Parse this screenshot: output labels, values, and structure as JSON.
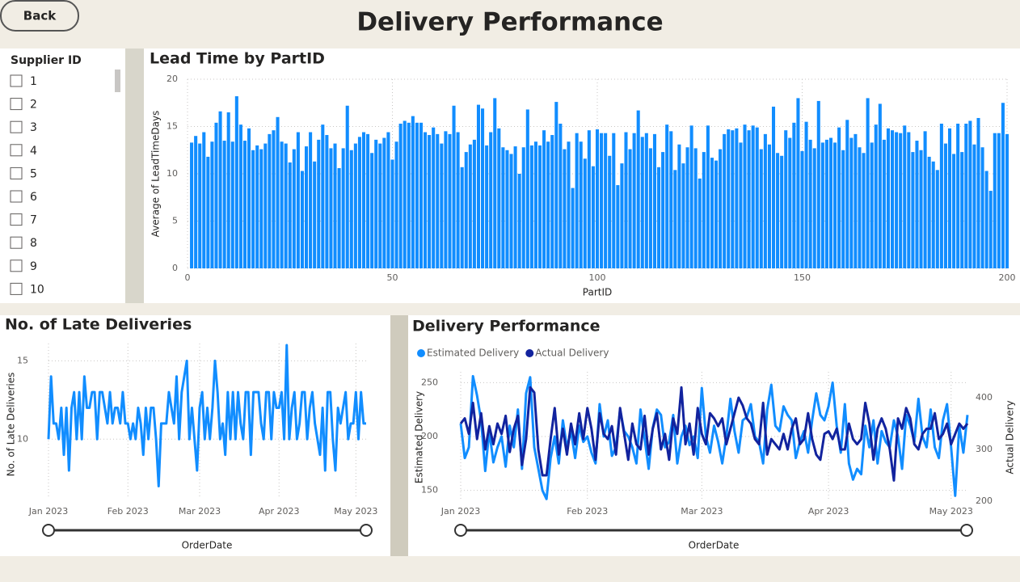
{
  "back_button": "Back",
  "title": "Delivery Performance",
  "slicer": {
    "title": "Supplier ID",
    "items": [
      "1",
      "2",
      "3",
      "4",
      "5",
      "6",
      "7",
      "8",
      "9",
      "10"
    ]
  },
  "chart_data": [
    {
      "type": "bar",
      "title": "Lead Time by PartID",
      "x_label": "PartID",
      "y_label": "Average of LeadTimeDays",
      "color": "#118dff",
      "grid": true,
      "xlim": [
        0,
        200
      ],
      "xticks": [
        0,
        50,
        100,
        150,
        200
      ],
      "ylim": [
        0,
        20
      ],
      "yticks": [
        0,
        5,
        10,
        15,
        20
      ],
      "x": [
        1,
        2,
        3,
        4,
        5,
        6,
        7,
        8,
        9,
        10,
        11,
        12,
        13,
        14,
        15,
        16,
        17,
        18,
        19,
        20,
        21,
        22,
        23,
        24,
        25,
        26,
        27,
        28,
        29,
        30,
        31,
        32,
        33,
        34,
        35,
        36,
        37,
        38,
        39,
        40,
        41,
        42,
        43,
        44,
        45,
        46,
        47,
        48,
        49,
        50,
        51,
        52,
        53,
        54,
        55,
        56,
        57,
        58,
        59,
        60,
        61,
        62,
        63,
        64,
        65,
        66,
        67,
        68,
        69,
        70,
        71,
        72,
        73,
        74,
        75,
        76,
        77,
        78,
        79,
        80,
        81,
        82,
        83,
        84,
        85,
        86,
        87,
        88,
        89,
        90,
        91,
        92,
        93,
        94,
        95,
        96,
        97,
        98,
        99,
        100,
        101,
        102,
        103,
        104,
        105,
        106,
        107,
        108,
        109,
        110,
        111,
        112,
        113,
        114,
        115,
        116,
        117,
        118,
        119,
        120,
        121,
        122,
        123,
        124,
        125,
        126,
        127,
        128,
        129,
        130,
        131,
        132,
        133,
        134,
        135,
        136,
        137,
        138,
        139,
        140,
        141,
        142,
        143,
        144,
        145,
        146,
        147,
        148,
        149,
        150,
        151,
        152,
        153,
        154,
        155,
        156,
        157,
        158,
        159,
        160,
        161,
        162,
        163,
        164,
        165,
        166,
        167,
        168,
        169,
        170,
        171,
        172,
        173,
        174,
        175,
        176,
        177,
        178,
        179,
        180,
        181,
        182,
        183,
        184,
        185,
        186,
        187,
        188,
        189,
        190,
        191,
        192,
        193,
        194,
        195,
        196,
        197,
        198,
        199,
        200
      ],
      "values": [
        13.3,
        14.0,
        13.2,
        14.4,
        11.8,
        13.4,
        15.4,
        16.6,
        13.5,
        16.5,
        13.4,
        18.2,
        15.2,
        13.5,
        14.8,
        12.5,
        13.0,
        12.6,
        13.2,
        14.2,
        14.6,
        16.0,
        13.4,
        13.2,
        11.2,
        12.6,
        14.4,
        10.3,
        12.9,
        14.4,
        11.3,
        13.6,
        15.2,
        14.1,
        12.7,
        13.2,
        10.6,
        12.7,
        17.2,
        12.5,
        13.2,
        13.9,
        14.4,
        14.2,
        12.2,
        13.6,
        13.2,
        13.8,
        14.4,
        11.5,
        13.4,
        15.3,
        15.6,
        15.4,
        16.1,
        15.4,
        15.4,
        14.4,
        14.1,
        14.9,
        14.2,
        13.2,
        14.5,
        14.2,
        17.2,
        14.4,
        10.7,
        12.3,
        13.1,
        13.6,
        17.3,
        16.9,
        13.0,
        14.4,
        18.0,
        14.8,
        12.8,
        12.5,
        12.1,
        12.9,
        10.0,
        12.8,
        16.8,
        13.0,
        13.4,
        13.0,
        14.6,
        13.4,
        14.1,
        17.6,
        15.3,
        12.6,
        13.4,
        8.5,
        14.3,
        13.4,
        11.6,
        14.6,
        10.8,
        14.7,
        14.3,
        14.3,
        11.9,
        14.3,
        8.8,
        11.1,
        14.4,
        12.6,
        14.3,
        16.7,
        13.9,
        14.3,
        12.7,
        14.2,
        10.7,
        12.3,
        15.2,
        14.5,
        10.4,
        13.1,
        11.1,
        12.8,
        15.1,
        12.7,
        9.5,
        12.3,
        15.1,
        11.7,
        11.4,
        12.6,
        14.2,
        14.7,
        14.6,
        14.8,
        13.3,
        15.2,
        14.6,
        15.1,
        14.9,
        12.6,
        14.2,
        13.1,
        17.1,
        12.2,
        11.9,
        14.6,
        13.8,
        15.4,
        18.0,
        12.4,
        15.5,
        13.6,
        12.7,
        17.7,
        13.3,
        13.6,
        13.8,
        13.3,
        14.9,
        12.5,
        15.7,
        13.8,
        14.2,
        12.8,
        12.2,
        18.0,
        13.3,
        15.2,
        17.4,
        13.6,
        14.8,
        14.6,
        14.4,
        14.3,
        15.1,
        14.4,
        12.3,
        13.5,
        12.5,
        14.5,
        11.8,
        11.3,
        10.4,
        15.3,
        13.2,
        14.8,
        12.1,
        15.3,
        12.3,
        15.3,
        15.6,
        13.1,
        15.9,
        12.8,
        10.3,
        8.2,
        14.3,
        14.3,
        17.5,
        14.2
      ]
    },
    {
      "type": "line",
      "title": "No. of Late Deliveries",
      "x_label": "OrderDate",
      "y_label": "No. of Late Deliveries",
      "color": "#118dff",
      "grid": true,
      "xlim": [
        0,
        124
      ],
      "xticks": [
        {
          "value": 0,
          "label": "Jan 2023"
        },
        {
          "value": 31,
          "label": "Feb 2023"
        },
        {
          "value": 59,
          "label": "Mar 2023"
        },
        {
          "value": 90,
          "label": "Apr 2023"
        },
        {
          "value": 120,
          "label": "May 2023"
        }
      ],
      "ylim": [
        6.3,
        16.1
      ],
      "yticks": [
        10,
        15
      ],
      "x": [
        0,
        1,
        2,
        3,
        4,
        5,
        6,
        7,
        8,
        9,
        10,
        11,
        12,
        13,
        14,
        15,
        16,
        17,
        18,
        19,
        20,
        21,
        22,
        23,
        24,
        25,
        26,
        27,
        28,
        29,
        30,
        31,
        32,
        33,
        34,
        35,
        36,
        37,
        38,
        39,
        40,
        41,
        42,
        43,
        44,
        45,
        46,
        47,
        48,
        49,
        50,
        51,
        52,
        53,
        54,
        55,
        56,
        57,
        58,
        59,
        60,
        61,
        62,
        63,
        64,
        65,
        66,
        67,
        68,
        69,
        70,
        71,
        72,
        73,
        74,
        75,
        76,
        77,
        78,
        79,
        80,
        81,
        82,
        83,
        84,
        85,
        86,
        87,
        88,
        89,
        90,
        91,
        92,
        93,
        94,
        95,
        96,
        97,
        98,
        99,
        100,
        101,
        102,
        103,
        104,
        105,
        106,
        107,
        108,
        109,
        110,
        111,
        112,
        113,
        114,
        115,
        116,
        117,
        118,
        119,
        120,
        121,
        122,
        123,
        124
      ],
      "values": [
        10,
        14,
        11,
        11,
        10,
        12,
        9,
        12,
        8,
        12,
        13,
        10,
        13,
        10,
        14,
        12,
        12,
        13,
        13,
        10,
        13,
        13,
        12,
        11,
        13,
        11,
        12,
        12,
        11,
        13,
        11,
        11,
        10,
        11,
        10,
        12,
        11,
        9,
        12,
        10,
        12,
        12,
        10,
        7,
        11,
        11,
        11,
        13,
        12,
        11,
        14,
        10,
        13,
        14,
        15,
        10,
        12,
        10,
        8,
        12,
        13,
        10,
        12,
        10,
        12,
        15,
        13,
        10,
        11,
        9,
        13,
        10,
        13,
        10,
        13,
        11,
        10,
        13,
        13,
        9,
        13,
        13,
        13,
        11,
        10,
        13,
        13,
        10,
        13,
        12,
        12,
        13,
        10,
        16,
        10,
        12,
        13,
        10,
        11,
        13,
        13,
        10,
        12,
        13,
        11,
        10,
        9,
        12,
        8,
        13,
        13,
        10,
        8,
        12,
        11,
        12,
        13,
        10,
        11,
        11,
        13,
        10,
        13,
        11,
        11
      ]
    },
    {
      "type": "line",
      "title": "Delivery Performance",
      "x_label": "OrderDate",
      "y_label": "Estimated Delivery",
      "y2_label": "Actual Delivery",
      "grid": true,
      "legend": "top-left",
      "xlim": [
        0,
        124
      ],
      "xticks": [
        {
          "value": 0,
          "label": "Jan 2023"
        },
        {
          "value": 31,
          "label": "Feb 2023"
        },
        {
          "value": 59,
          "label": "Mar 2023"
        },
        {
          "value": 90,
          "label": "Apr 2023"
        },
        {
          "value": 120,
          "label": "May 2023"
        }
      ],
      "ylim": [
        140,
        260
      ],
      "yticks": [
        150,
        200,
        250
      ],
      "y2lim": [
        200,
        450
      ],
      "y2ticks": [
        200,
        300,
        400
      ],
      "x": [
        0,
        1,
        2,
        3,
        4,
        5,
        6,
        7,
        8,
        9,
        10,
        11,
        12,
        13,
        14,
        15,
        16,
        17,
        18,
        19,
        20,
        21,
        22,
        23,
        24,
        25,
        26,
        27,
        28,
        29,
        30,
        31,
        32,
        33,
        34,
        35,
        36,
        37,
        38,
        39,
        40,
        41,
        42,
        43,
        44,
        45,
        46,
        47,
        48,
        49,
        50,
        51,
        52,
        53,
        54,
        55,
        56,
        57,
        58,
        59,
        60,
        61,
        62,
        63,
        64,
        65,
        66,
        67,
        68,
        69,
        70,
        71,
        72,
        73,
        74,
        75,
        76,
        77,
        78,
        79,
        80,
        81,
        82,
        83,
        84,
        85,
        86,
        87,
        88,
        89,
        90,
        91,
        92,
        93,
        94,
        95,
        96,
        97,
        98,
        99,
        100,
        101,
        102,
        103,
        104,
        105,
        106,
        107,
        108,
        109,
        110,
        111,
        112,
        113,
        114,
        115,
        116,
        117,
        118,
        119,
        120,
        121,
        122,
        123,
        124
      ],
      "series": [
        {
          "name": "Estimated Delivery",
          "color": "#118dff",
          "values": [
            212,
            180,
            190,
            256,
            238,
            215,
            168,
            205,
            176,
            190,
            200,
            172,
            210,
            190,
            225,
            170,
            240,
            255,
            190,
            170,
            150,
            142,
            180,
            200,
            175,
            215,
            190,
            205,
            180,
            210,
            195,
            200,
            185,
            175,
            230,
            200,
            215,
            182,
            190,
            225,
            205,
            200,
            190,
            175,
            225,
            198,
            170,
            208,
            225,
            220,
            190,
            195,
            220,
            175,
            200,
            210,
            192,
            200,
            180,
            245,
            200,
            185,
            210,
            195,
            175,
            200,
            235,
            205,
            185,
            215,
            218,
            230,
            200,
            195,
            175,
            225,
            248,
            210,
            205,
            228,
            220,
            215,
            180,
            195,
            205,
            185,
            215,
            240,
            220,
            215,
            228,
            250,
            210,
            185,
            230,
            175,
            160,
            170,
            165,
            210,
            190,
            215,
            175,
            205,
            195,
            190,
            215,
            200,
            170,
            220,
            210,
            195,
            235,
            200,
            190,
            225,
            190,
            180,
            215,
            230,
            190,
            145,
            210,
            185,
            220
          ]
        },
        {
          "name": "Actual Delivery",
          "color": "#12239e",
          "axis": "y2",
          "values": [
            350,
            360,
            330,
            390,
            320,
            370,
            300,
            345,
            310,
            350,
            330,
            365,
            295,
            340,
            365,
            270,
            320,
            420,
            410,
            300,
            250,
            250,
            320,
            380,
            290,
            340,
            290,
            350,
            310,
            370,
            320,
            380,
            340,
            280,
            370,
            330,
            320,
            345,
            290,
            380,
            330,
            280,
            350,
            310,
            300,
            365,
            290,
            340,
            370,
            300,
            330,
            280,
            360,
            330,
            420,
            310,
            350,
            290,
            380,
            330,
            310,
            370,
            360,
            345,
            360,
            310,
            340,
            370,
            400,
            385,
            360,
            350,
            320,
            310,
            390,
            290,
            320,
            310,
            300,
            330,
            300,
            340,
            360,
            310,
            320,
            370,
            320,
            290,
            280,
            330,
            335,
            320,
            340,
            300,
            300,
            350,
            320,
            310,
            320,
            390,
            350,
            280,
            340,
            360,
            340,
            300,
            240,
            360,
            340,
            380,
            360,
            310,
            300,
            330,
            340,
            340,
            370,
            320,
            330,
            350,
            310,
            330,
            350,
            340,
            350
          ]
        }
      ]
    }
  ]
}
